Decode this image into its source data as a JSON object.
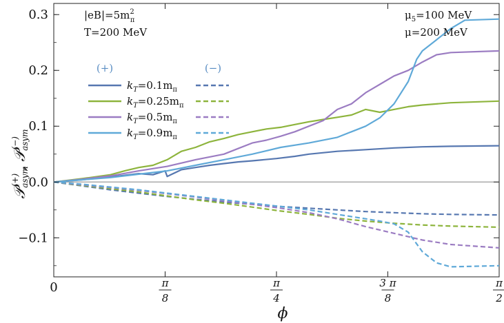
{
  "chart_data": {
    "type": "line",
    "xlabel": "ϕ",
    "ylabel_main": "𝒫",
    "ylabel_sub1": "asym",
    "ylabel_sup1": "(+)",
    "ylabel_sub2": "asym",
    "ylabel_sup2": "(−)",
    "ylabel_sep": ",",
    "xlim": [
      0,
      1.5708
    ],
    "ylim": [
      -0.17,
      0.32
    ],
    "x_ticks": [
      {
        "value": 0,
        "num": "0",
        "den": ""
      },
      {
        "value": 0.3927,
        "num": "π",
        "den": "8"
      },
      {
        "value": 0.7854,
        "num": "π",
        "den": "4"
      },
      {
        "value": 1.1781,
        "num": "3 π",
        "den": "8"
      },
      {
        "value": 1.5708,
        "num": "π",
        "den": "2"
      }
    ],
    "y_ticks": [
      {
        "value": -0.1,
        "label": "−0.1"
      },
      {
        "value": 0.0,
        "label": "0.0"
      },
      {
        "value": 0.1,
        "label": "0.1"
      },
      {
        "value": 0.2,
        "label": "0.2"
      },
      {
        "value": 0.3,
        "label": "0.3"
      }
    ],
    "annotations_left": [
      "|eB|=5m",
      "T=200 MeV"
    ],
    "annotations_left_sup": "2",
    "annotations_left_sub": "π",
    "annotations_right": [
      "μ",
      "μ=200 MeV"
    ],
    "annotations_right_sub": "5",
    "annotations_right_rest": "=100 MeV",
    "legend": {
      "header_plus": "(+)",
      "header_minus": "(−)",
      "placement": "upper-left",
      "entries": [
        {
          "label": "k",
          "sub": "T",
          "value": "=0.1m",
          "unit_sub": "π",
          "color": "#5677b0"
        },
        {
          "label": "k",
          "sub": "T",
          "value": "=0.25m",
          "unit_sub": "π",
          "color": "#8db43c"
        },
        {
          "label": "k",
          "sub": "T",
          "value": "=0.5m",
          "unit_sub": "π",
          "color": "#9b7cc2"
        },
        {
          "label": "k",
          "sub": "T",
          "value": "=0.9m",
          "unit_sub": "π",
          "color": "#5fa9d8"
        }
      ]
    },
    "series": [
      {
        "sign": "+",
        "color": "#5677b0",
        "points": [
          [
            0,
            0
          ],
          [
            0.1,
            0.004
          ],
          [
            0.2,
            0.009
          ],
          [
            0.3,
            0.015
          ],
          [
            0.35,
            0.013
          ],
          [
            0.3927,
            0.02
          ],
          [
            0.4,
            0.01
          ],
          [
            0.45,
            0.022
          ],
          [
            0.5,
            0.026
          ],
          [
            0.55,
            0.03
          ],
          [
            0.6,
            0.033
          ],
          [
            0.65,
            0.036
          ],
          [
            0.7,
            0.038
          ],
          [
            0.7854,
            0.042
          ],
          [
            0.85,
            0.046
          ],
          [
            0.9,
            0.05
          ],
          [
            1.0,
            0.055
          ],
          [
            1.1,
            0.058
          ],
          [
            1.2,
            0.061
          ],
          [
            1.3,
            0.063
          ],
          [
            1.4,
            0.064
          ],
          [
            1.5708,
            0.065
          ]
        ]
      },
      {
        "sign": "+",
        "color": "#8db43c",
        "points": [
          [
            0,
            0
          ],
          [
            0.1,
            0.006
          ],
          [
            0.2,
            0.013
          ],
          [
            0.25,
            0.02
          ],
          [
            0.3,
            0.026
          ],
          [
            0.35,
            0.03
          ],
          [
            0.4,
            0.04
          ],
          [
            0.45,
            0.055
          ],
          [
            0.5,
            0.062
          ],
          [
            0.55,
            0.072
          ],
          [
            0.6,
            0.078
          ],
          [
            0.65,
            0.085
          ],
          [
            0.7,
            0.09
          ],
          [
            0.75,
            0.095
          ],
          [
            0.8,
            0.098
          ],
          [
            0.85,
            0.103
          ],
          [
            0.9,
            0.108
          ],
          [
            0.95,
            0.112
          ],
          [
            1.0,
            0.116
          ],
          [
            1.05,
            0.12
          ],
          [
            1.1,
            0.13
          ],
          [
            1.15,
            0.125
          ],
          [
            1.2,
            0.13
          ],
          [
            1.25,
            0.135
          ],
          [
            1.3,
            0.138
          ],
          [
            1.4,
            0.142
          ],
          [
            1.5708,
            0.145
          ]
        ]
      },
      {
        "sign": "+",
        "color": "#9b7cc2",
        "points": [
          [
            0,
            0
          ],
          [
            0.1,
            0.005
          ],
          [
            0.2,
            0.011
          ],
          [
            0.3,
            0.02
          ],
          [
            0.4,
            0.028
          ],
          [
            0.5,
            0.04
          ],
          [
            0.6,
            0.05
          ],
          [
            0.65,
            0.06
          ],
          [
            0.7,
            0.07
          ],
          [
            0.75,
            0.075
          ],
          [
            0.8,
            0.082
          ],
          [
            0.85,
            0.09
          ],
          [
            0.9,
            0.1
          ],
          [
            0.95,
            0.11
          ],
          [
            1.0,
            0.13
          ],
          [
            1.05,
            0.14
          ],
          [
            1.1,
            0.16
          ],
          [
            1.15,
            0.175
          ],
          [
            1.2,
            0.19
          ],
          [
            1.25,
            0.2
          ],
          [
            1.3,
            0.215
          ],
          [
            1.35,
            0.228
          ],
          [
            1.4,
            0.232
          ],
          [
            1.5708,
            0.235
          ]
        ]
      },
      {
        "sign": "+",
        "color": "#5fa9d8",
        "points": [
          [
            0,
            0
          ],
          [
            0.1,
            0.004
          ],
          [
            0.2,
            0.008
          ],
          [
            0.3,
            0.014
          ],
          [
            0.4,
            0.02
          ],
          [
            0.5,
            0.03
          ],
          [
            0.6,
            0.04
          ],
          [
            0.7,
            0.05
          ],
          [
            0.8,
            0.062
          ],
          [
            0.9,
            0.07
          ],
          [
            1.0,
            0.08
          ],
          [
            1.05,
            0.09
          ],
          [
            1.1,
            0.1
          ],
          [
            1.15,
            0.115
          ],
          [
            1.2,
            0.14
          ],
          [
            1.25,
            0.18
          ],
          [
            1.28,
            0.22
          ],
          [
            1.3,
            0.235
          ],
          [
            1.35,
            0.255
          ],
          [
            1.4,
            0.275
          ],
          [
            1.45,
            0.29
          ],
          [
            1.5708,
            0.292
          ]
        ]
      },
      {
        "sign": "-",
        "color": "#5677b0",
        "points": [
          [
            0,
            0
          ],
          [
            0.1,
            -0.007
          ],
          [
            0.2,
            -0.014
          ],
          [
            0.3,
            -0.02
          ],
          [
            0.4,
            -0.026
          ],
          [
            0.5,
            -0.031
          ],
          [
            0.6,
            -0.036
          ],
          [
            0.7,
            -0.04
          ],
          [
            0.8,
            -0.044
          ],
          [
            0.9,
            -0.047
          ],
          [
            1.0,
            -0.05
          ],
          [
            1.1,
            -0.053
          ],
          [
            1.2,
            -0.055
          ],
          [
            1.3,
            -0.057
          ],
          [
            1.4,
            -0.058
          ],
          [
            1.5708,
            -0.059
          ]
        ]
      },
      {
        "sign": "-",
        "color": "#8db43c",
        "points": [
          [
            0,
            0
          ],
          [
            0.1,
            -0.006
          ],
          [
            0.2,
            -0.012
          ],
          [
            0.3,
            -0.018
          ],
          [
            0.4,
            -0.025
          ],
          [
            0.5,
            -0.032
          ],
          [
            0.6,
            -0.038
          ],
          [
            0.7,
            -0.045
          ],
          [
            0.8,
            -0.052
          ],
          [
            0.9,
            -0.058
          ],
          [
            1.0,
            -0.065
          ],
          [
            1.1,
            -0.07
          ],
          [
            1.2,
            -0.074
          ],
          [
            1.3,
            -0.077
          ],
          [
            1.4,
            -0.079
          ],
          [
            1.5708,
            -0.081
          ]
        ]
      },
      {
        "sign": "-",
        "color": "#9b7cc2",
        "points": [
          [
            0,
            0
          ],
          [
            0.1,
            -0.005
          ],
          [
            0.2,
            -0.01
          ],
          [
            0.3,
            -0.015
          ],
          [
            0.4,
            -0.021
          ],
          [
            0.5,
            -0.027
          ],
          [
            0.6,
            -0.034
          ],
          [
            0.7,
            -0.04
          ],
          [
            0.8,
            -0.047
          ],
          [
            0.9,
            -0.055
          ],
          [
            1.0,
            -0.066
          ],
          [
            1.1,
            -0.08
          ],
          [
            1.2,
            -0.092
          ],
          [
            1.3,
            -0.104
          ],
          [
            1.4,
            -0.112
          ],
          [
            1.5708,
            -0.118
          ]
        ]
      },
      {
        "sign": "-",
        "color": "#5fa9d8",
        "points": [
          [
            0,
            0
          ],
          [
            0.1,
            -0.004
          ],
          [
            0.2,
            -0.009
          ],
          [
            0.3,
            -0.014
          ],
          [
            0.4,
            -0.02
          ],
          [
            0.5,
            -0.026
          ],
          [
            0.6,
            -0.032
          ],
          [
            0.7,
            -0.038
          ],
          [
            0.8,
            -0.044
          ],
          [
            0.9,
            -0.05
          ],
          [
            1.0,
            -0.058
          ],
          [
            1.1,
            -0.066
          ],
          [
            1.15,
            -0.07
          ],
          [
            1.2,
            -0.075
          ],
          [
            1.25,
            -0.09
          ],
          [
            1.3,
            -0.125
          ],
          [
            1.35,
            -0.145
          ],
          [
            1.4,
            -0.152
          ],
          [
            1.5708,
            -0.15
          ]
        ]
      }
    ]
  }
}
